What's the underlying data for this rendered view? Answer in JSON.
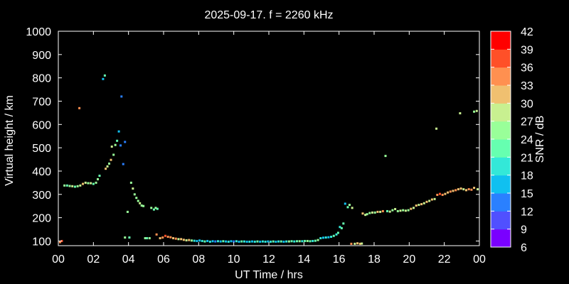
{
  "chart_data": {
    "type": "scatter",
    "title": "2025-09-17. f = 2260 kHz",
    "xlabel": "UT Time / hrs",
    "ylabel": "Virtual height / km",
    "xlim": [
      0,
      24
    ],
    "ylim": [
      80,
      1000
    ],
    "x_ticks": [
      "00",
      "02",
      "04",
      "06",
      "08",
      "10",
      "12",
      "14",
      "16",
      "18",
      "20",
      "22",
      "00"
    ],
    "y_ticks": [
      100,
      200,
      300,
      400,
      500,
      600,
      700,
      800,
      900,
      1000
    ],
    "grid": false,
    "colorbar": {
      "label": "SNR / dB",
      "min": 6,
      "max": 42,
      "ticks": [
        6,
        9,
        12,
        15,
        18,
        21,
        24,
        27,
        30,
        33,
        36,
        39,
        42
      ],
      "colors": [
        "#7a00ff",
        "#5050ff",
        "#2a80ff",
        "#10c0f0",
        "#33e8d8",
        "#66ffb0",
        "#99ff99",
        "#c8f090",
        "#f0c070",
        "#ff9050",
        "#ff5028",
        "#ff0000"
      ]
    },
    "points": [
      [
        0.1,
        95,
        33
      ],
      [
        0.2,
        100,
        36
      ],
      [
        0.35,
        338,
        24
      ],
      [
        0.5,
        338,
        21
      ],
      [
        0.65,
        336,
        24
      ],
      [
        0.8,
        335,
        27
      ],
      [
        0.95,
        333,
        21
      ],
      [
        1.1,
        335,
        24
      ],
      [
        1.25,
        338,
        27
      ],
      [
        1.4,
        345,
        30
      ],
      [
        1.55,
        350,
        27
      ],
      [
        1.7,
        348,
        24
      ],
      [
        1.85,
        348,
        27
      ],
      [
        2.0,
        345,
        21
      ],
      [
        2.15,
        350,
        24
      ],
      [
        2.25,
        365,
        24
      ],
      [
        2.35,
        380,
        21
      ],
      [
        1.2,
        670,
        33
      ],
      [
        2.55,
        795,
        15
      ],
      [
        2.65,
        810,
        21
      ],
      [
        2.7,
        410,
        30
      ],
      [
        2.8,
        420,
        27
      ],
      [
        2.9,
        432,
        24
      ],
      [
        3.0,
        448,
        30
      ],
      [
        3.05,
        505,
        27
      ],
      [
        3.15,
        470,
        24
      ],
      [
        3.25,
        512,
        24
      ],
      [
        3.35,
        530,
        21
      ],
      [
        3.45,
        570,
        15
      ],
      [
        3.55,
        510,
        12
      ],
      [
        3.6,
        720,
        12
      ],
      [
        3.7,
        430,
        12
      ],
      [
        3.8,
        525,
        12
      ],
      [
        3.8,
        115,
        24
      ],
      [
        4.05,
        115,
        21
      ],
      [
        3.95,
        225,
        24
      ],
      [
        4.15,
        350,
        24
      ],
      [
        4.25,
        325,
        27
      ],
      [
        4.35,
        300,
        24
      ],
      [
        4.45,
        285,
        24
      ],
      [
        4.55,
        272,
        24
      ],
      [
        4.65,
        262,
        27
      ],
      [
        4.75,
        252,
        24
      ],
      [
        4.85,
        250,
        24
      ],
      [
        4.95,
        112,
        24
      ],
      [
        5.05,
        112,
        21
      ],
      [
        5.2,
        112,
        24
      ],
      [
        5.3,
        242,
        24
      ],
      [
        5.45,
        235,
        21
      ],
      [
        5.55,
        242,
        24
      ],
      [
        5.65,
        238,
        21
      ],
      [
        5.6,
        128,
        33
      ],
      [
        5.8,
        112,
        30
      ],
      [
        5.95,
        115,
        33
      ],
      [
        6.1,
        122,
        36
      ],
      [
        6.25,
        118,
        33
      ],
      [
        6.4,
        116,
        33
      ],
      [
        6.55,
        112,
        30
      ],
      [
        6.7,
        110,
        33
      ],
      [
        6.85,
        108,
        27
      ],
      [
        7.0,
        108,
        30
      ],
      [
        7.15,
        105,
        30
      ],
      [
        7.3,
        103,
        27
      ],
      [
        7.45,
        104,
        30
      ],
      [
        7.6,
        102,
        24
      ],
      [
        7.75,
        101,
        18
      ],
      [
        7.9,
        100,
        15
      ],
      [
        8.05,
        102,
        15
      ],
      [
        8.2,
        100,
        18
      ],
      [
        8.35,
        98,
        21
      ],
      [
        8.5,
        100,
        15
      ],
      [
        8.65,
        97,
        18
      ],
      [
        8.8,
        99,
        15
      ],
      [
        8.95,
        98,
        12
      ],
      [
        9.1,
        99,
        18
      ],
      [
        9.25,
        98,
        15
      ],
      [
        9.4,
        99,
        21
      ],
      [
        9.55,
        98,
        15
      ],
      [
        9.7,
        97,
        18
      ],
      [
        9.85,
        99,
        15
      ],
      [
        10.0,
        98,
        12
      ],
      [
        10.15,
        99,
        18
      ],
      [
        10.3,
        97,
        15
      ],
      [
        10.45,
        98,
        21
      ],
      [
        10.6,
        98,
        18
      ],
      [
        10.75,
        97,
        15
      ],
      [
        10.9,
        97,
        18
      ],
      [
        11.05,
        98,
        15
      ],
      [
        11.2,
        97,
        18
      ],
      [
        11.35,
        98,
        21
      ],
      [
        11.5,
        97,
        15
      ],
      [
        11.65,
        98,
        18
      ],
      [
        11.8,
        97,
        18
      ],
      [
        11.95,
        98,
        15
      ],
      [
        12.1,
        97,
        18
      ],
      [
        12.25,
        98,
        21
      ],
      [
        12.4,
        97,
        15
      ],
      [
        12.55,
        98,
        18
      ],
      [
        12.7,
        98,
        21
      ],
      [
        12.85,
        97,
        15
      ],
      [
        13.0,
        98,
        18
      ],
      [
        13.15,
        98,
        24
      ],
      [
        13.3,
        99,
        21
      ],
      [
        13.45,
        98,
        18
      ],
      [
        13.6,
        99,
        21
      ],
      [
        13.75,
        99,
        24
      ],
      [
        13.9,
        99,
        18
      ],
      [
        14.05,
        100,
        21
      ],
      [
        14.2,
        100,
        24
      ],
      [
        14.35,
        99,
        21
      ],
      [
        14.5,
        100,
        18
      ],
      [
        14.65,
        101,
        21
      ],
      [
        14.8,
        104,
        24
      ],
      [
        14.95,
        112,
        18
      ],
      [
        15.1,
        114,
        15
      ],
      [
        15.25,
        115,
        18
      ],
      [
        15.4,
        116,
        15
      ],
      [
        15.55,
        118,
        18
      ],
      [
        15.7,
        122,
        21
      ],
      [
        15.85,
        128,
        18
      ],
      [
        15.95,
        135,
        21
      ],
      [
        16.05,
        160,
        18
      ],
      [
        16.15,
        155,
        21
      ],
      [
        16.25,
        175,
        21
      ],
      [
        16.35,
        260,
        15
      ],
      [
        16.5,
        245,
        21
      ],
      [
        16.6,
        255,
        24
      ],
      [
        16.75,
        242,
        27
      ],
      [
        16.7,
        88,
        33
      ],
      [
        16.9,
        88,
        27
      ],
      [
        17.05,
        90,
        30
      ],
      [
        17.2,
        88,
        30
      ],
      [
        17.3,
        89,
        27
      ],
      [
        17.35,
        218,
        30
      ],
      [
        17.5,
        212,
        27
      ],
      [
        17.6,
        215,
        24
      ],
      [
        17.75,
        220,
        24
      ],
      [
        17.9,
        222,
        27
      ],
      [
        18.05,
        222,
        24
      ],
      [
        18.2,
        225,
        30
      ],
      [
        18.35,
        225,
        27
      ],
      [
        18.5,
        228,
        33
      ],
      [
        18.65,
        465,
        24
      ],
      [
        18.75,
        228,
        21
      ],
      [
        18.9,
        226,
        27
      ],
      [
        19.05,
        232,
        24
      ],
      [
        19.2,
        237,
        27
      ],
      [
        19.35,
        228,
        24
      ],
      [
        19.5,
        230,
        27
      ],
      [
        19.65,
        232,
        24
      ],
      [
        19.8,
        230,
        27
      ],
      [
        19.95,
        232,
        24
      ],
      [
        20.1,
        238,
        30
      ],
      [
        20.25,
        242,
        27
      ],
      [
        20.4,
        252,
        30
      ],
      [
        20.55,
        255,
        27
      ],
      [
        20.7,
        258,
        30
      ],
      [
        20.85,
        262,
        27
      ],
      [
        21.0,
        268,
        30
      ],
      [
        21.15,
        272,
        27
      ],
      [
        21.3,
        278,
        30
      ],
      [
        21.45,
        280,
        27
      ],
      [
        21.55,
        582,
        27
      ],
      [
        21.6,
        298,
        33
      ],
      [
        21.75,
        302,
        36
      ],
      [
        21.9,
        298,
        33
      ],
      [
        22.05,
        302,
        30
      ],
      [
        22.2,
        308,
        30
      ],
      [
        22.35,
        312,
        33
      ],
      [
        22.5,
        315,
        30
      ],
      [
        22.65,
        318,
        33
      ],
      [
        22.8,
        322,
        30
      ],
      [
        22.95,
        325,
        30
      ],
      [
        23.1,
        322,
        27
      ],
      [
        23.25,
        318,
        30
      ],
      [
        23.4,
        322,
        33
      ],
      [
        23.55,
        320,
        33
      ],
      [
        23.7,
        328,
        30
      ],
      [
        23.9,
        322,
        27
      ],
      [
        22.9,
        648,
        27
      ],
      [
        23.7,
        655,
        24
      ],
      [
        23.85,
        658,
        27
      ]
    ]
  }
}
